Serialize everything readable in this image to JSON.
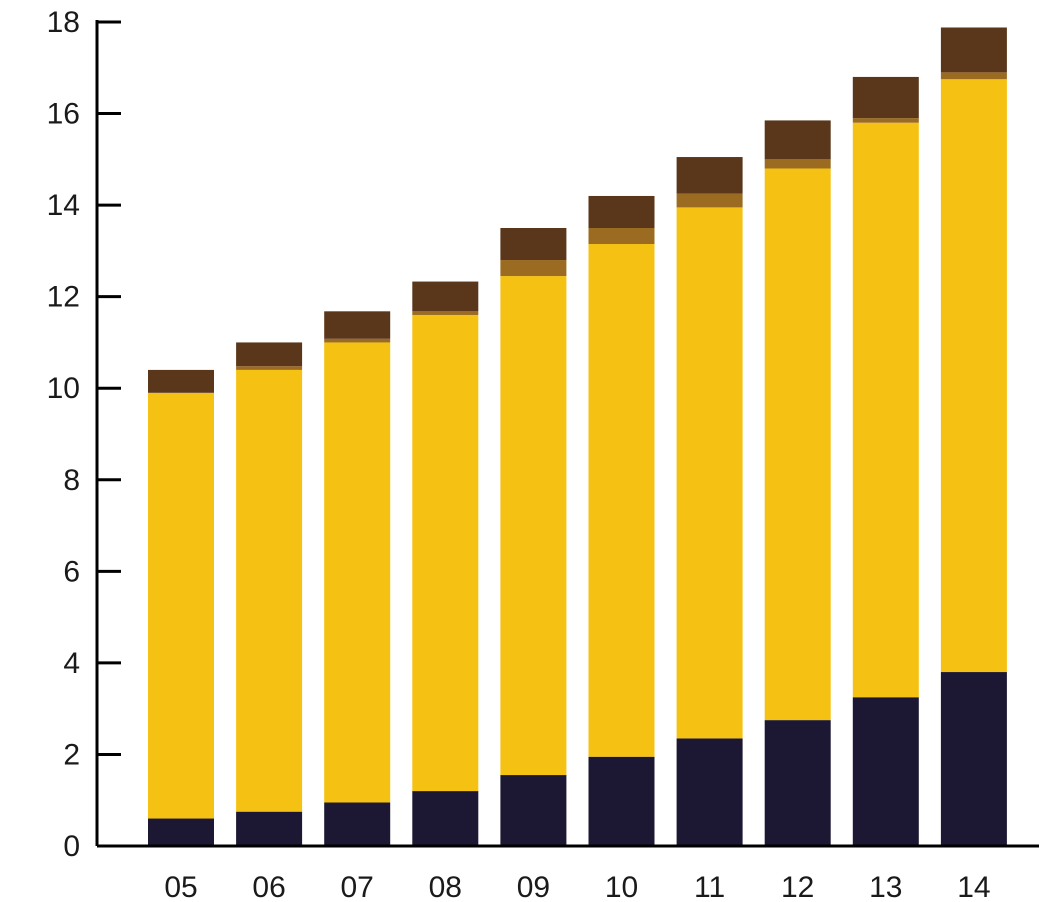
{
  "chart_data": {
    "type": "bar",
    "stacked": true,
    "categories": [
      "05",
      "06",
      "07",
      "08",
      "09",
      "10",
      "11",
      "12",
      "13",
      "14"
    ],
    "series": [
      {
        "values": [
          0.6,
          0.75,
          0.95,
          1.2,
          1.55,
          1.95,
          2.35,
          2.75,
          3.25,
          3.8
        ],
        "color": "#1c1833"
      },
      {
        "values": [
          9.3,
          9.65,
          10.05,
          10.4,
          10.9,
          11.2,
          11.6,
          12.05,
          12.55,
          12.95
        ],
        "color": "#f5c213"
      },
      {
        "values": [
          0.0,
          0.08,
          0.08,
          0.08,
          0.35,
          0.35,
          0.3,
          0.2,
          0.1,
          0.15
        ],
        "color": "#9b6b22"
      },
      {
        "values": [
          0.5,
          0.52,
          0.6,
          0.65,
          0.7,
          0.7,
          0.8,
          0.85,
          0.9,
          0.98
        ],
        "color": "#5a371b"
      }
    ],
    "title": "",
    "xlabel": "",
    "ylabel": "",
    "ylim": [
      0,
      18
    ],
    "yticks": [
      "0",
      "2",
      "4",
      "6",
      "8",
      "10",
      "12",
      "14",
      "16",
      "18"
    ],
    "grid": false,
    "legend": "none"
  }
}
